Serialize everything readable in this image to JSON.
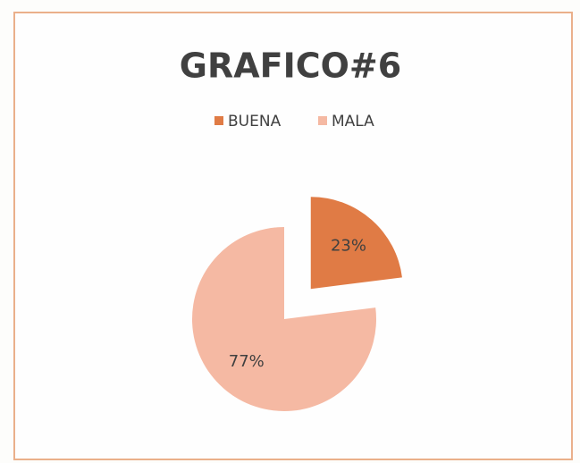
{
  "chart_data": {
    "type": "pie",
    "title": "GRAFICO#6",
    "categories": [
      "BUENA",
      "MALA"
    ],
    "values": [
      23,
      77
    ],
    "value_labels": [
      "23%",
      "77%"
    ],
    "colors": [
      "#e07b45",
      "#f5b9a3"
    ],
    "legend": "top"
  }
}
